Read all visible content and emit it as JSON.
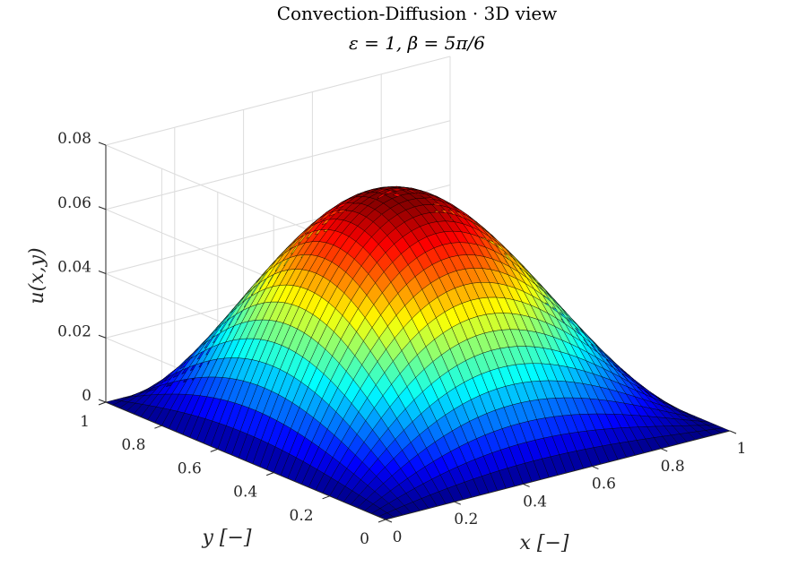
{
  "chart_data": {
    "type": "surface3d",
    "title": "Convection-Diffusion · 3D view",
    "subtitle": "ε = 1, β = 5π/6",
    "xlabel": "x [−]",
    "ylabel": "y [−]",
    "zlabel": "u(x,y)",
    "xlim": [
      0,
      1
    ],
    "ylim": [
      0,
      1
    ],
    "zlim": [
      0,
      0.08
    ],
    "x_ticks": [
      0,
      0.2,
      0.4,
      0.6,
      0.8,
      1
    ],
    "y_ticks": [
      0,
      0.2,
      0.4,
      0.6,
      0.8,
      1
    ],
    "z_ticks": [
      0,
      0.02,
      0.04,
      0.06,
      0.08
    ],
    "x_tick_labels": [
      "0",
      "0.2",
      "0.4",
      "0.6",
      "0.8",
      "1"
    ],
    "y_tick_labels": [
      "0",
      "0.2",
      "0.4",
      "0.6",
      "0.8",
      "1"
    ],
    "z_tick_labels": [
      "0",
      "0.02",
      "0.04",
      "0.06",
      "0.08"
    ],
    "peak_value": 0.0695,
    "grid_resolution": 40,
    "colormap": "jet",
    "grid": true
  }
}
